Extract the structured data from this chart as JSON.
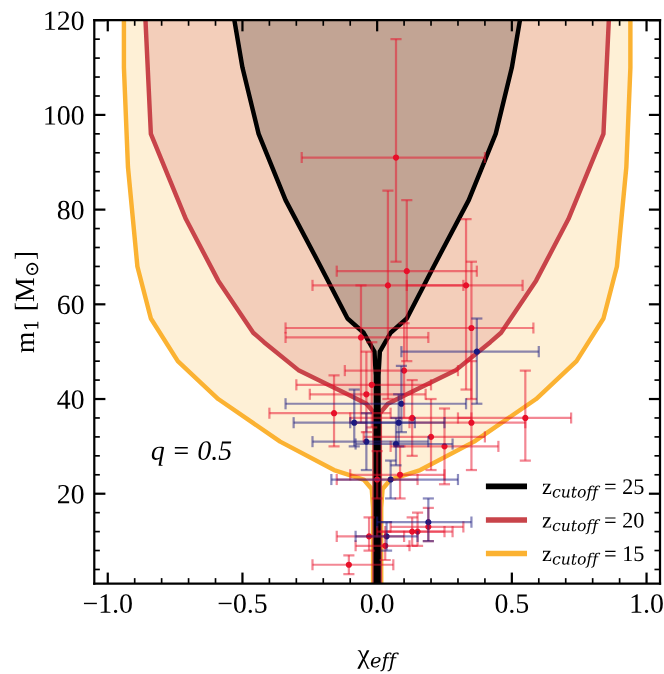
{
  "chart_data": {
    "type": "area",
    "xlabel": "χ$_{eff}$",
    "ylabel": "m$_{1}$ [M$_{⊙}$]",
    "annotations": [
      "q = 0.5"
    ],
    "xlim": [
      -1.05,
      1.05
    ],
    "ylim": [
      1,
      120
    ],
    "xticks": [
      {
        "value": -1,
        "label": "−1.0"
      },
      {
        "value": -0.5,
        "label": "−0.5"
      },
      {
        "value": 0,
        "label": "0.0"
      },
      {
        "value": 0.5,
        "label": "0.5"
      },
      {
        "value": 1,
        "label": "1.0"
      }
    ],
    "yticks": [
      20,
      40,
      60,
      80,
      100,
      120
    ],
    "grid": false,
    "legend": "bottom right",
    "series": [
      {
        "name": "z$_{cutoff}$ = 25",
        "color": "#000000",
        "x": [
          -0.53,
          -0.5,
          -0.44,
          -0.34,
          -0.21,
          -0.11,
          -0.05,
          -0.01,
          -0.005,
          -0.005,
          0.005,
          0.005,
          0.01,
          0.05,
          0.11,
          0.21,
          0.34,
          0.44,
          0.5,
          0.53
        ],
        "values": [
          120,
          110,
          96,
          82,
          68,
          57,
          54,
          50,
          45,
          1,
          1,
          45,
          50,
          54,
          57,
          68,
          82,
          96,
          110,
          120
        ]
      },
      {
        "name": "z$_{cutoff}$ = 20",
        "color": "#c8444a",
        "x": [
          -0.86,
          -0.84,
          -0.71,
          -0.59,
          -0.46,
          -0.42,
          -0.29,
          -0.11,
          -0.04,
          -0.01,
          -0.01,
          0.01,
          0.01,
          0.04,
          0.11,
          0.29,
          0.42,
          0.46,
          0.59,
          0.71,
          0.84,
          0.86
        ],
        "values": [
          120,
          96,
          78,
          65,
          54,
          52,
          46,
          41,
          39,
          37,
          1,
          1,
          37,
          39,
          41,
          46,
          52,
          54,
          65,
          78,
          96,
          120
        ]
      },
      {
        "name": "z$_{cutoff}$ = 15",
        "color": "#fbb232",
        "x": [
          -0.94,
          -0.94,
          -0.925,
          -0.89,
          -0.84,
          -0.74,
          -0.59,
          -0.36,
          -0.16,
          -0.05,
          -0.02,
          -0.015,
          -0.015,
          0.015,
          0.015,
          0.02,
          0.05,
          0.16,
          0.36,
          0.59,
          0.74,
          0.84,
          0.89,
          0.925,
          0.94,
          0.94
        ],
        "values": [
          120,
          110,
          89,
          68,
          57,
          48,
          40,
          31,
          25,
          23,
          21,
          17,
          1,
          1,
          17,
          21,
          23,
          25,
          31,
          40,
          48,
          57,
          68,
          89,
          110,
          120
        ]
      },
      {
        "type": "scatter",
        "color": "#e8102a",
        "marker": "circle",
        "x": [
          0.07,
          0.11,
          0.04,
          0.33,
          0.35,
          -0.06,
          0.55,
          0.35,
          0.25,
          0.2,
          0.13,
          -0.16,
          -0.02,
          0.0,
          0.085,
          -0.04,
          0.1,
          -0.105,
          -0.03,
          0.03,
          0.13,
          0.15,
          0.19
        ],
        "values": [
          91,
          67,
          64,
          64,
          55,
          53,
          36,
          35,
          30,
          32,
          36,
          37,
          43,
          23,
          24,
          41,
          46,
          5,
          11,
          9,
          12,
          12,
          13
        ],
        "xerrors": [
          [
            -0.28,
            0.4
          ],
          [
            -0.15,
            0.37
          ],
          [
            -0.24,
            0.32
          ],
          [
            0.11,
            0.54
          ],
          [
            -0.34,
            0.58
          ],
          [
            -0.34,
            0.19
          ],
          [
            0.3,
            0.72
          ],
          [
            0.12,
            0.55
          ],
          [
            0.05,
            0.45
          ],
          [
            -0.05,
            0.4
          ],
          [
            -0.1,
            0.35
          ],
          [
            -0.4,
            0.05
          ],
          [
            -0.3,
            0.2
          ],
          [
            -0.15,
            0.15
          ],
          [
            -0.1,
            0.25
          ],
          [
            -0.25,
            0.18
          ],
          [
            -0.12,
            0.3
          ],
          [
            -0.24,
            0.06
          ],
          [
            -0.15,
            0.1
          ],
          [
            -0.08,
            0.12
          ],
          [
            0.0,
            0.25
          ],
          [
            0.03,
            0.28
          ],
          [
            0.05,
            0.32
          ]
        ],
        "errors": [
          [
            69,
            116
          ],
          [
            48,
            82
          ],
          [
            40,
            84
          ],
          [
            42,
            78
          ],
          [
            40,
            69
          ],
          [
            35,
            64
          ],
          [
            27,
            46
          ],
          [
            25,
            48
          ],
          [
            22,
            38
          ],
          [
            25,
            40
          ],
          [
            28,
            44
          ],
          [
            30,
            45
          ],
          [
            34,
            52
          ],
          [
            19,
            29
          ],
          [
            19,
            30
          ],
          [
            33,
            50
          ],
          [
            36,
            56
          ],
          [
            3,
            7
          ],
          [
            8,
            15
          ],
          [
            6,
            12
          ],
          [
            9,
            15
          ],
          [
            9,
            16
          ],
          [
            10,
            17
          ]
        ]
      },
      {
        "type": "scatter",
        "color": "#1a1a80",
        "marker": "circle",
        "x": [
          0.37,
          -0.085,
          -0.04,
          0.08,
          0.07,
          0.09,
          0.05,
          0.19,
          0.035
        ],
        "values": [
          50,
          35,
          31,
          35,
          30.5,
          39,
          23,
          14,
          11
        ],
        "xerrors": [
          [
            0.09,
            0.6
          ],
          [
            -0.31,
            0.14
          ],
          [
            -0.24,
            0.19
          ],
          [
            -0.1,
            0.25
          ],
          [
            -0.08,
            0.28
          ],
          [
            -0.34,
            0.33
          ],
          [
            -0.17,
            0.3
          ],
          [
            0.0,
            0.35
          ],
          [
            -0.08,
            0.15
          ]
        ],
        "errors": [
          [
            39,
            57
          ],
          [
            30,
            42
          ],
          [
            25,
            37
          ],
          [
            30,
            41
          ],
          [
            26,
            36
          ],
          [
            33,
            47
          ],
          [
            19,
            27
          ],
          [
            10,
            19
          ],
          [
            8,
            14
          ]
        ]
      }
    ]
  }
}
